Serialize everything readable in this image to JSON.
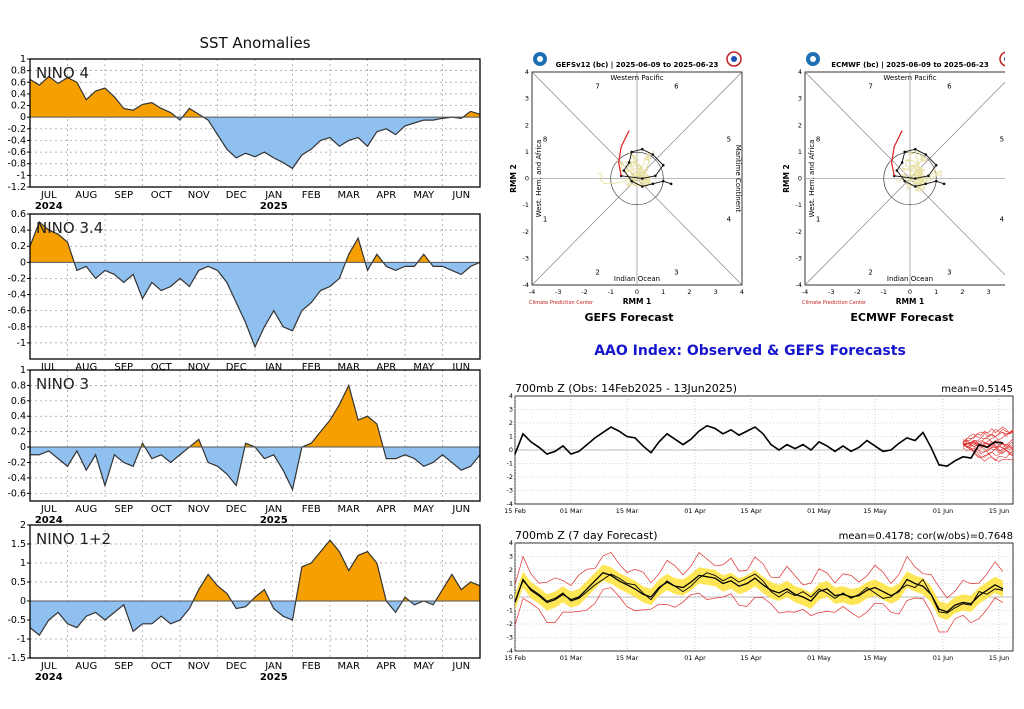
{
  "left_panel": {
    "title": "SST Anomalies",
    "month_ticks": [
      "JUL",
      "AUG",
      "SEP",
      "OCT",
      "NOV",
      "DEC",
      "JAN",
      "FEB",
      "MAR",
      "APR",
      "MAY",
      "JUN"
    ],
    "year_labels": [
      "2024",
      "2025"
    ]
  },
  "mjo": {
    "gefs": {
      "header": "GEFSv12 (bc) | 2025-06-09 to 2025-06-23",
      "caption": "GEFS Forecast"
    },
    "ecmwf": {
      "header": "ECMWF (bc) | 2025-06-09 to 2025-06-23",
      "caption": "ECMWF Forecast"
    },
    "top_label": "Western Pacific",
    "bottom_label": "Indian Ocean",
    "left_label": "West. Hem. and Africa",
    "right_label": "Maritime Continent",
    "xlabel": "RMM 1",
    "ylabel": "RMM 2",
    "credit": "Climate Prediction Center",
    "phase_numbers": [
      "1",
      "2",
      "3",
      "4",
      "5",
      "6",
      "7",
      "8"
    ],
    "axis_ticks": [
      "-4",
      "-3",
      "-2",
      "-1",
      "0",
      "1",
      "2",
      "3",
      "4"
    ]
  },
  "aao": {
    "title": "AAO Index: Observed & GEFS Forecasts",
    "obs_title": "700mb Z (Obs: 14Feb2025 - 13Jun2025)",
    "obs_mean": "mean=0.5145",
    "fc_title": "700mb Z (7 day Forecast)",
    "fc_stats": "mean=0.4178; cor(w/obs)=0.7648",
    "date_ticks": [
      "15 Feb",
      "01 Mar",
      "15 Mar",
      "01 Apr",
      "15 Apr",
      "01 May",
      "15 May",
      "01 Jun",
      "15 Jun"
    ],
    "y_ticks": [
      "4",
      "3",
      "2",
      "1",
      "0",
      "-1",
      "-2",
      "-3",
      "-4"
    ]
  },
  "chart_data": [
    {
      "type": "area",
      "name": "NINO 4",
      "label": "NINO 4",
      "title": "SST Anomalies",
      "ylim": [
        -1.2,
        1
      ],
      "yticks": [
        1,
        0.8,
        0.6,
        0.4,
        0.2,
        0,
        -0.2,
        -0.4,
        -0.6,
        -0.8,
        -1,
        -1.2
      ],
      "xlim": [
        0,
        12
      ],
      "x": [
        0,
        0.25,
        0.5,
        0.75,
        1,
        1.25,
        1.5,
        1.75,
        2,
        2.25,
        2.5,
        2.75,
        3,
        3.25,
        3.5,
        3.75,
        4,
        4.25,
        4.5,
        4.75,
        5,
        5.25,
        5.5,
        5.75,
        6,
        6.25,
        6.5,
        6.75,
        7,
        7.25,
        7.5,
        7.75,
        8,
        8.25,
        8.5,
        8.75,
        9,
        9.25,
        9.5,
        9.75,
        10,
        10.25,
        10.5,
        10.75,
        11,
        11.25,
        11.5,
        11.75,
        12
      ],
      "y": [
        0.65,
        0.55,
        0.7,
        0.58,
        0.68,
        0.6,
        0.3,
        0.45,
        0.5,
        0.35,
        0.15,
        0.12,
        0.22,
        0.25,
        0.15,
        0.08,
        -0.05,
        0.15,
        0.05,
        -0.05,
        -0.3,
        -0.55,
        -0.7,
        -0.62,
        -0.68,
        -0.6,
        -0.7,
        -0.78,
        -0.88,
        -0.65,
        -0.55,
        -0.4,
        -0.35,
        -0.5,
        -0.4,
        -0.35,
        -0.5,
        -0.25,
        -0.2,
        -0.3,
        -0.15,
        -0.1,
        -0.05,
        -0.05,
        -0.02,
        0.0,
        -0.02,
        0.1,
        0.05
      ]
    },
    {
      "type": "area",
      "name": "NINO 3.4",
      "label": "NINO 3.4",
      "ylim": [
        -1.2,
        0.6
      ],
      "yticks": [
        0.6,
        0.4,
        0.2,
        0,
        -0.2,
        -0.4,
        -0.6,
        -0.8,
        -1
      ],
      "xlim": [
        0,
        12
      ],
      "x": [
        0,
        0.25,
        0.5,
        0.75,
        1,
        1.25,
        1.5,
        1.75,
        2,
        2.25,
        2.5,
        2.75,
        3,
        3.25,
        3.5,
        3.75,
        4,
        4.25,
        4.5,
        4.75,
        5,
        5.25,
        5.5,
        5.75,
        6,
        6.25,
        6.5,
        6.75,
        7,
        7.25,
        7.5,
        7.75,
        8,
        8.25,
        8.5,
        8.75,
        9,
        9.25,
        9.5,
        9.75,
        10,
        10.25,
        10.5,
        10.75,
        11,
        11.25,
        11.5,
        11.75,
        12
      ],
      "y": [
        0.2,
        0.5,
        0.4,
        0.35,
        0.25,
        -0.1,
        -0.05,
        -0.2,
        -0.1,
        -0.15,
        -0.25,
        -0.15,
        -0.45,
        -0.25,
        -0.35,
        -0.3,
        -0.2,
        -0.3,
        -0.1,
        -0.05,
        -0.1,
        -0.25,
        -0.5,
        -0.75,
        -1.05,
        -0.8,
        -0.6,
        -0.8,
        -0.85,
        -0.6,
        -0.5,
        -0.35,
        -0.3,
        -0.2,
        0.1,
        0.3,
        -0.1,
        0.1,
        -0.05,
        -0.1,
        -0.05,
        -0.05,
        0.1,
        -0.05,
        -0.05,
        -0.1,
        -0.15,
        -0.05,
        0.0
      ]
    },
    {
      "type": "area",
      "name": "NINO 3",
      "label": "NINO 3",
      "ylim": [
        -0.7,
        1
      ],
      "yticks": [
        1,
        0.8,
        0.6,
        0.4,
        0.2,
        0,
        -0.2,
        -0.4,
        -0.6
      ],
      "xlim": [
        0,
        12
      ],
      "x": [
        0,
        0.25,
        0.5,
        0.75,
        1,
        1.25,
        1.5,
        1.75,
        2,
        2.25,
        2.5,
        2.75,
        3,
        3.25,
        3.5,
        3.75,
        4,
        4.25,
        4.5,
        4.75,
        5,
        5.25,
        5.5,
        5.75,
        6,
        6.25,
        6.5,
        6.75,
        7,
        7.25,
        7.5,
        7.75,
        8,
        8.25,
        8.5,
        8.75,
        9,
        9.25,
        9.5,
        9.75,
        10,
        10.25,
        10.5,
        10.75,
        11,
        11.25,
        11.5,
        11.75,
        12
      ],
      "y": [
        -0.1,
        -0.1,
        -0.05,
        -0.15,
        -0.25,
        -0.05,
        -0.3,
        -0.1,
        -0.5,
        -0.1,
        -0.2,
        -0.25,
        0.05,
        -0.15,
        -0.1,
        -0.2,
        -0.1,
        0.0,
        0.1,
        -0.2,
        -0.25,
        -0.35,
        -0.5,
        0.05,
        0.0,
        -0.15,
        -0.1,
        -0.3,
        -0.55,
        0.0,
        0.05,
        0.2,
        0.35,
        0.55,
        0.8,
        0.35,
        0.4,
        0.3,
        -0.15,
        -0.15,
        -0.1,
        -0.15,
        -0.25,
        -0.2,
        -0.1,
        -0.2,
        -0.3,
        -0.25,
        -0.1
      ]
    },
    {
      "type": "area",
      "name": "NINO 1+2",
      "label": "NINO 1+2",
      "ylim": [
        -1.5,
        2
      ],
      "yticks": [
        2,
        1.5,
        1,
        0.5,
        0,
        -0.5,
        -1,
        -1.5
      ],
      "xlim": [
        0,
        12
      ],
      "x": [
        0,
        0.25,
        0.5,
        0.75,
        1,
        1.25,
        1.5,
        1.75,
        2,
        2.25,
        2.5,
        2.75,
        3,
        3.25,
        3.5,
        3.75,
        4,
        4.25,
        4.5,
        4.75,
        5,
        5.25,
        5.5,
        5.75,
        6,
        6.25,
        6.5,
        6.75,
        7,
        7.25,
        7.5,
        7.75,
        8,
        8.25,
        8.5,
        8.75,
        9,
        9.25,
        9.5,
        9.75,
        10,
        10.25,
        10.5,
        10.75,
        11,
        11.25,
        11.5,
        11.75,
        12
      ],
      "y": [
        -0.7,
        -0.9,
        -0.5,
        -0.3,
        -0.6,
        -0.7,
        -0.4,
        -0.3,
        -0.5,
        -0.3,
        -0.1,
        -0.8,
        -0.6,
        -0.6,
        -0.4,
        -0.6,
        -0.5,
        -0.2,
        0.3,
        0.7,
        0.4,
        0.2,
        -0.2,
        -0.15,
        0.1,
        0.3,
        -0.2,
        -0.4,
        -0.5,
        0.9,
        1.0,
        1.3,
        1.6,
        1.3,
        0.8,
        1.2,
        1.3,
        1.0,
        0.0,
        -0.3,
        0.1,
        -0.1,
        0.0,
        -0.1,
        0.3,
        0.7,
        0.3,
        0.5,
        0.4
      ]
    },
    {
      "type": "line",
      "name": "AAO observed",
      "ylim": [
        -4,
        4
      ],
      "x": [
        0,
        2,
        4,
        6,
        8,
        10,
        12,
        14,
        16,
        18,
        20,
        22,
        24,
        26,
        28,
        30,
        32,
        34,
        36,
        38,
        40,
        42,
        44,
        46,
        48,
        50,
        52,
        54,
        56,
        58,
        60,
        62,
        64,
        66,
        68,
        70,
        72,
        74,
        76,
        78,
        80,
        82,
        84,
        86,
        88,
        90,
        92,
        94,
        96,
        98,
        100,
        102,
        104,
        106,
        108,
        110,
        112,
        114,
        116,
        118,
        120,
        122
      ],
      "y": [
        -0.3,
        1.2,
        0.6,
        0.2,
        -0.3,
        -0.1,
        0.3,
        -0.3,
        -0.1,
        0.4,
        0.9,
        1.3,
        1.7,
        1.4,
        1.0,
        0.9,
        0.3,
        -0.2,
        0.6,
        1.2,
        0.8,
        0.4,
        0.8,
        1.4,
        1.8,
        1.6,
        1.2,
        1.5,
        1.1,
        1.4,
        1.7,
        1.2,
        0.4,
        0.0,
        0.4,
        0.1,
        0.4,
        0.0,
        0.6,
        0.3,
        -0.1,
        0.3,
        -0.1,
        0.2,
        0.7,
        0.3,
        -0.1,
        0.0,
        0.5,
        0.9,
        0.7,
        1.3,
        0.2,
        -1.1,
        -1.2,
        -0.8,
        -0.5,
        -0.6,
        0.4,
        0.2,
        0.6,
        0.5
      ]
    },
    {
      "type": "line",
      "name": "AAO 7-day forecast",
      "ylim": [
        -4,
        4
      ],
      "x": [
        0,
        2,
        4,
        6,
        8,
        10,
        12,
        14,
        16,
        18,
        20,
        22,
        24,
        26,
        28,
        30,
        32,
        34,
        36,
        38,
        40,
        42,
        44,
        46,
        48,
        50,
        52,
        54,
        56,
        58,
        60,
        62,
        64,
        66,
        68,
        70,
        72,
        74,
        76,
        78,
        80,
        82,
        84,
        86,
        88,
        90,
        92,
        94,
        96,
        98,
        100,
        102,
        104,
        106,
        108,
        110,
        112,
        114,
        116,
        118,
        120,
        122
      ],
      "y": [
        -0.4,
        1.3,
        0.5,
        0.1,
        -0.4,
        -0.2,
        0.2,
        -0.2,
        0.0,
        0.6,
        1.2,
        1.8,
        1.6,
        1.2,
        0.9,
        0.6,
        0.2,
        0.0,
        0.7,
        1.1,
        0.8,
        0.7,
        1.1,
        1.6,
        1.5,
        1.4,
        1.0,
        1.2,
        0.8,
        1.0,
        1.4,
        0.9,
        0.5,
        0.3,
        0.6,
        0.2,
        0.0,
        -0.3,
        0.4,
        0.6,
        0.1,
        0.2,
        0.0,
        0.1,
        0.5,
        0.7,
        0.4,
        0.1,
        0.4,
        1.3,
        1.0,
        0.8,
        0.2,
        -0.9,
        -1.1,
        -0.6,
        -0.4,
        -0.5,
        0.1,
        0.5,
        0.9,
        0.6
      ]
    }
  ]
}
